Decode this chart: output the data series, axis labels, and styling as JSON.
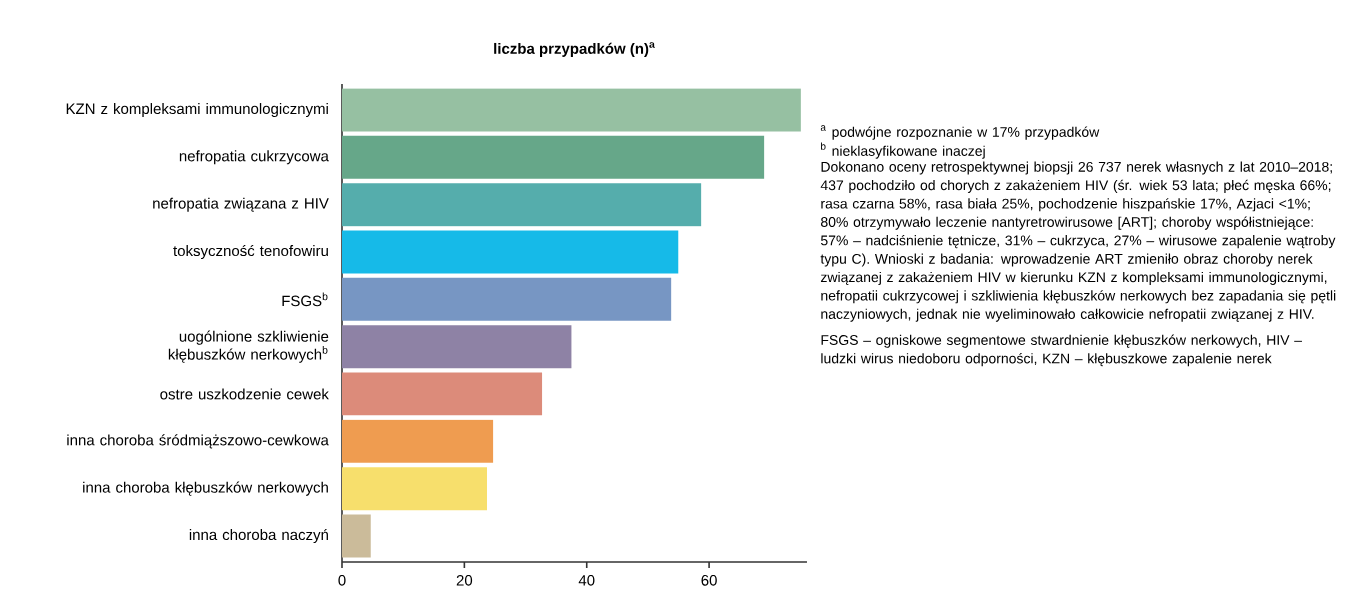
{
  "chart_data": {
    "type": "bar",
    "orientation": "horizontal",
    "title": "**liczba przypadków (n)$^{a}$**",
    "categories": [
      "KZN z kompleksami immunologicznymi",
      "nefropatia cukrzycowa",
      "nefropatia związana z HIV",
      "toksyczność tenofowiru",
      "FSGS$^{b}$",
      "uogólnione szkliwienie kłębuszków nerkowych$^{b}$",
      "ostre uszkodzenie cewek",
      "inna choroba śródmiąższowo-cewkowa",
      "inna choroba kłębuszków nerkowych",
      "inna choroba naczyń"
    ],
    "values": [
      75,
      69,
      58.7,
      55,
      53.8,
      37.5,
      32.7,
      24.7,
      23.7,
      4.7
    ],
    "colors": [
      "#96c0a2",
      "#66a789",
      "#55adac",
      "#16bae8",
      "#7796c3",
      "#8e82a5",
      "#dc8b7a",
      "#ef9c50",
      "#f7df6c",
      "#cbbb9a"
    ],
    "xlim": [
      0,
      76
    ],
    "xticks": [
      0,
      20,
      40,
      60
    ],
    "annotations": [
      "$^{a}$ podwójne rozpoznanie w 17% przypadków",
      "$^{b}$ nieklasyfikowane inaczej",
      "Dokonano oceny retrospektywnej biopsji 26 737 nerek własnych z lat 2010–2018; 437 pochodziło od chorych z zakażeniem HIV (śr. wiek 53 lata; płeć męska 66%; rasa czarna 58%, rasa biała 25%, pochodzenie hiszpańskie 17%, Azjaci <1%; 80% otrzymywało leczenie nantyretrowirusowe [ART]; choroby współistniejące: 57% – nadciśnienie tętnicze, 31% – cukrzyca, 27% – wirusowe zapalenie wątroby typu C). Wnioski z badania: wprowadzenie ART zmieniło obraz choroby nerek związanej z zakażeniem HIV w kierunku KZN z kompleksami immunologicznymi, nefropatii cukrzycowej i szkliwienia kłębuszków nerkowych bez zapadania się pętli naczyniowych, jednak nie wyeliminowało całkowicie nefropatii związanej z HIV.",
      "FSGS – ogniskowe segmentowe stwardnienie kłębuszków nerkowych, HIV – ludzki wirus niedoboru odporności, KZN – kłębuszkowe zapalenie nerek"
    ]
  }
}
